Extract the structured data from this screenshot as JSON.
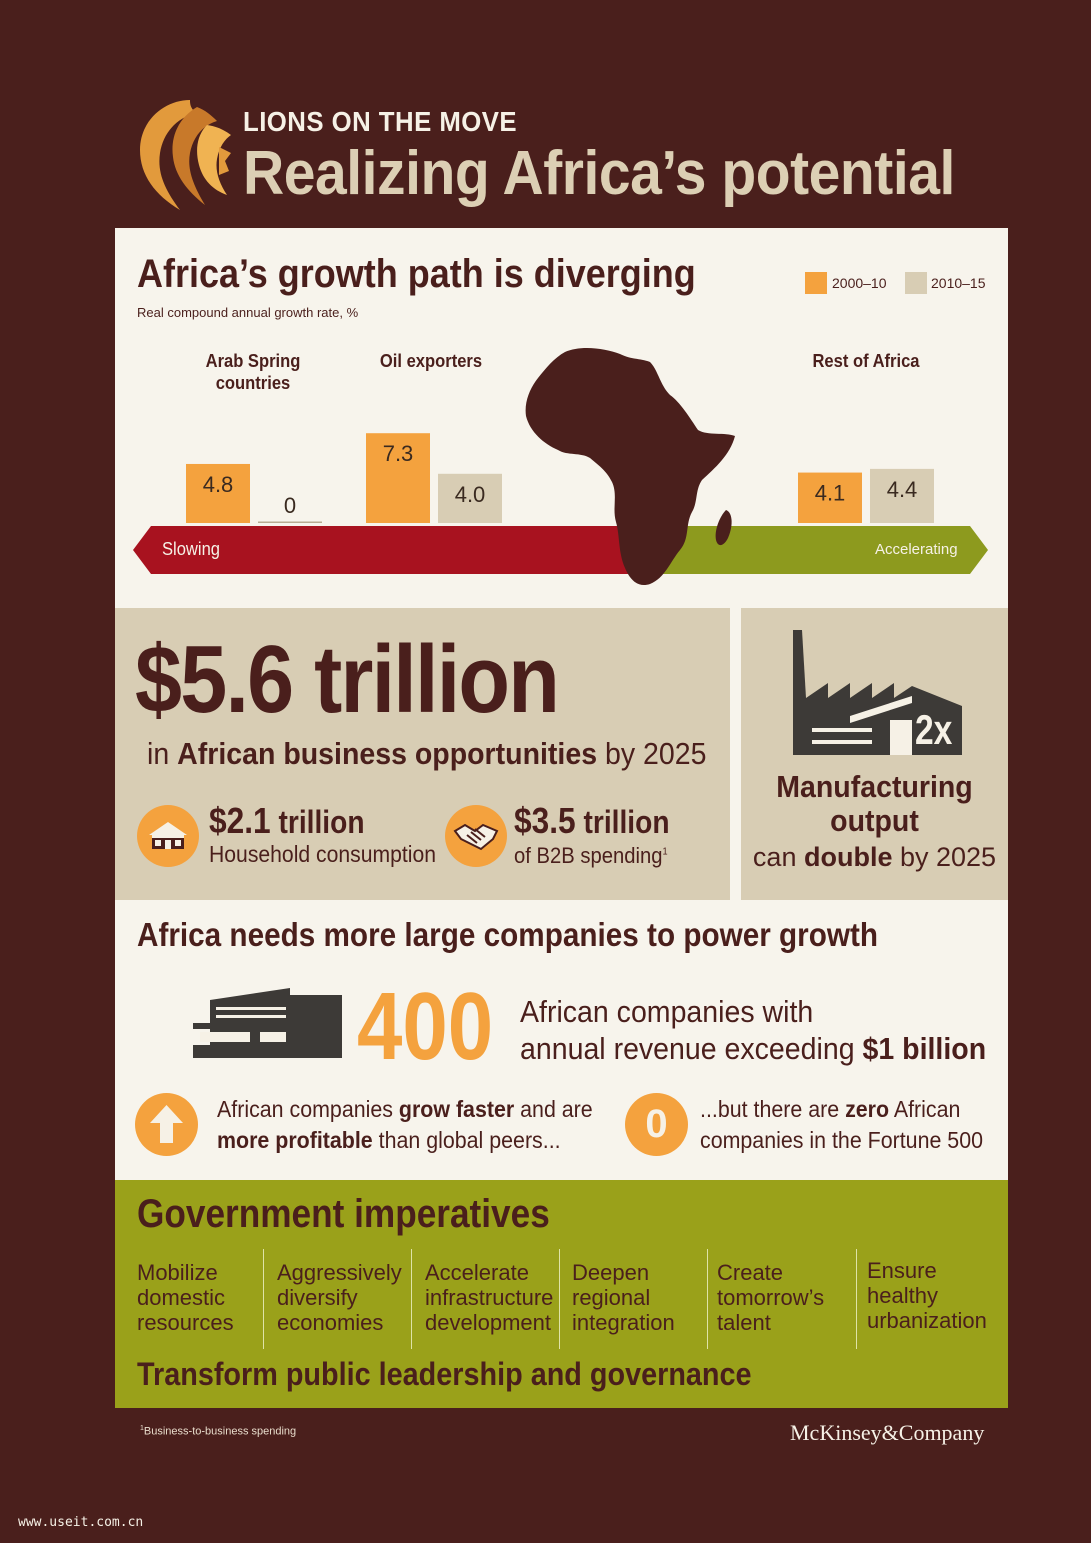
{
  "header": {
    "kicker": "LIONS ON THE MOVE",
    "title": "Realizing Africa’s potential"
  },
  "growth": {
    "title": "Africa’s growth path is diverging",
    "subtitle": "Real compound annual growth rate, %",
    "slowing_label": "Slowing",
    "accelerating_label": "Accelerating",
    "legend": [
      "2000–10",
      "2010–15"
    ]
  },
  "chart_data": {
    "type": "bar",
    "title": "Africa’s growth path is diverging",
    "ylabel": "Real compound annual growth rate, %",
    "categories": [
      "Arab Spring countries",
      "Oil exporters",
      "Rest of Africa"
    ],
    "series": [
      {
        "name": "2000–10",
        "values": [
          4.8,
          7.3,
          4.1
        ],
        "color": "#f4a23e"
      },
      {
        "name": "2010–15",
        "values": [
          0,
          4.0,
          4.4
        ],
        "color": "#d8cdb4"
      }
    ],
    "value_labels": [
      [
        "4.8",
        "7.3",
        "4.1"
      ],
      [
        "0",
        "4.0",
        "4.4"
      ]
    ],
    "legend_position": "top-right",
    "grid": false
  },
  "opportunities": {
    "amount": "$5.6 trillion",
    "sub_pre": "in ",
    "sub_bold": "African business opportunities",
    "sub_post": " by 2025",
    "household_amount": "$2.1",
    "household_unit": " trillion",
    "household_desc": "Household consumption",
    "b2b_amount": "$3.5",
    "b2b_unit": " trillion",
    "b2b_desc": "of B2B spending",
    "b2b_sup": "1"
  },
  "manufacturing": {
    "multiplier": "2x",
    "title_line1": "Manufacturing",
    "title_line2": "output",
    "sub_pre": "can ",
    "sub_bold": "double",
    "sub_post": " by 2025"
  },
  "companies": {
    "title": "Africa needs more large companies to power growth",
    "number": "400",
    "desc_line1": "African companies with",
    "desc_line2_pre": "annual revenue exceeding ",
    "desc_line2_bold": "$1 billion",
    "fact1_p1": "African companies ",
    "fact1_b1": "grow faster",
    "fact1_p2": " and are",
    "fact1_b2": "more profitable",
    "fact1_p3": " than global peers...",
    "zero": "0",
    "fact2_p1": "...but there are ",
    "fact2_b1": "zero",
    "fact2_p2": " African",
    "fact2_line2": "companies in the Fortune 500"
  },
  "government": {
    "title": "Government imperatives",
    "items": [
      [
        "Mobilize",
        "domestic",
        "resources"
      ],
      [
        "Aggressively",
        "diversify",
        "economies"
      ],
      [
        "Accelerate",
        "infrastructure",
        "development"
      ],
      [
        "Deepen",
        "regional",
        "integration"
      ],
      [
        "Create",
        "tomorrow’s",
        "talent"
      ],
      [
        "Ensure",
        "healthy",
        "urbanization"
      ]
    ],
    "footer": "Transform public leadership and governance"
  },
  "footnote": {
    "sup": "1",
    "text": "Business-to-business spending"
  },
  "brand": "McKinsey&Company",
  "watermark": "www.useit.com.cn",
  "colors": {
    "background": "#4a1f1c",
    "orange": "#f4a23e",
    "beige": "#d8cdb4",
    "cream": "#f7f4ec",
    "red": "#a8121f",
    "olive": "#9aa11a"
  }
}
